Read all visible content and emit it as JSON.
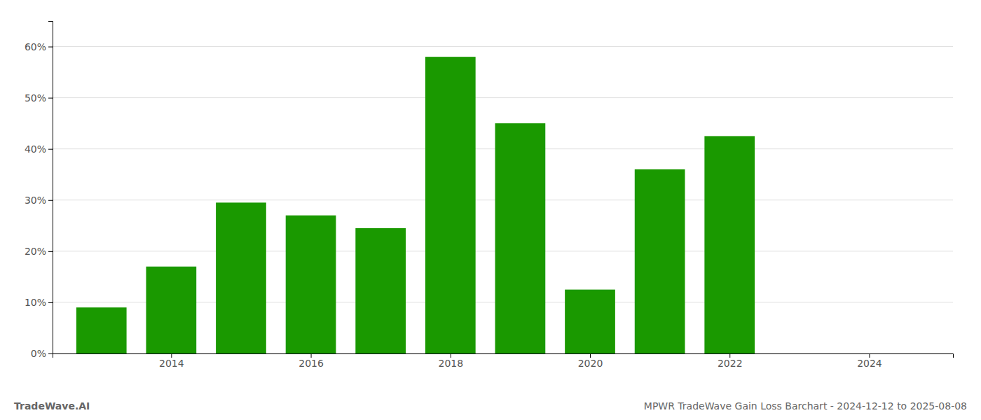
{
  "chart_data": {
    "type": "bar",
    "x": [
      2013,
      2014,
      2015,
      2016,
      2017,
      2018,
      2019,
      2020,
      2021,
      2022,
      2023
    ],
    "values": [
      0.09,
      0.17,
      0.295,
      0.27,
      0.245,
      0.58,
      0.45,
      0.125,
      0.36,
      0.425,
      0.0
    ],
    "color": "#1a9900",
    "xlim": [
      2012.3,
      2025.2
    ],
    "xticks": [
      2014,
      2016,
      2018,
      2020,
      2022,
      2024
    ],
    "ylim": [
      0,
      0.65
    ],
    "yticks": [
      {
        "value": 0.0,
        "label": "0%"
      },
      {
        "value": 0.1,
        "label": "10%"
      },
      {
        "value": 0.2,
        "label": "20%"
      },
      {
        "value": 0.3,
        "label": "30%"
      },
      {
        "value": 0.4,
        "label": "40%"
      },
      {
        "value": 0.5,
        "label": "50%"
      },
      {
        "value": 0.6,
        "label": "60%"
      }
    ],
    "grid": true,
    "annotations": [
      "TradeWave.AI",
      "MPWR TradeWave Gain Loss Barchart - 2024-12-12 to 2025-08-08"
    ]
  }
}
